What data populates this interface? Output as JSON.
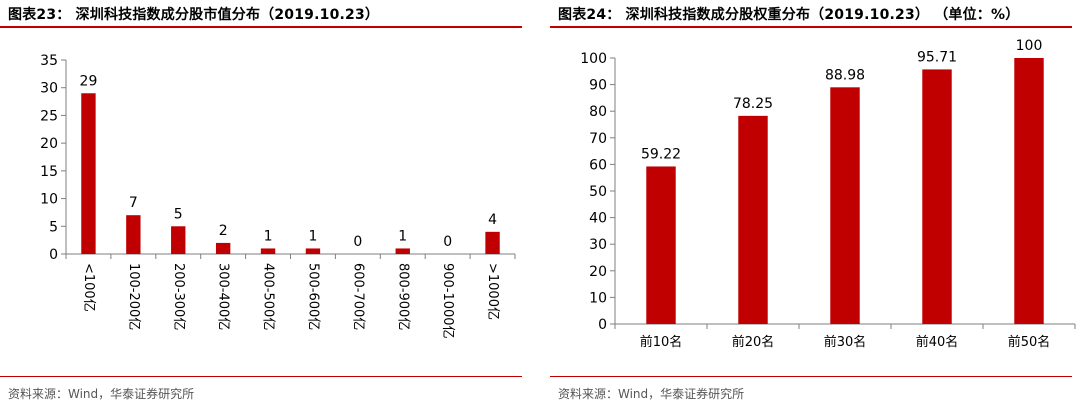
{
  "colors": {
    "accent": "#c00000",
    "bar": "#c00000",
    "axis": "#7f7f7f",
    "source_text": "#555555"
  },
  "left_chart": {
    "title": "图表23：  深圳科技指数成分股市值分布（2019.10.23）",
    "source": "资料来源：Wind，华泰证券研究所"
  },
  "right_chart": {
    "title": "图表24：  深圳科技指数成分股权重分布（2019.10.23）  （单位：%）",
    "source": "资料来源：Wind，华泰证券研究所"
  },
  "chart_data": [
    {
      "type": "bar",
      "title": "图表23：  深圳科技指数成分股市值分布（2019.10.23）",
      "categories": [
        "<100亿",
        "100-200亿",
        "200-300亿",
        "300-400亿",
        "400-500亿",
        "500-600亿",
        "600-700亿",
        "800-900亿",
        "900-1000亿",
        ">1000亿"
      ],
      "values": [
        29,
        7,
        5,
        2,
        1,
        1,
        0,
        1,
        0,
        4
      ],
      "ylim": [
        0,
        35
      ],
      "yticks": [
        0,
        5,
        10,
        15,
        20,
        25,
        30,
        35
      ],
      "xlabel": "",
      "ylabel": "",
      "grid": false,
      "data_labels": true,
      "x_tick_rotation": "vertical"
    },
    {
      "type": "bar",
      "title": "图表24：  深圳科技指数成分股权重分布（2019.10.23）  （单位：%）",
      "categories": [
        "前10名",
        "前20名",
        "前30名",
        "前40名",
        "前50名"
      ],
      "values": [
        59.22,
        78.25,
        88.98,
        95.71,
        100
      ],
      "ylim": [
        0,
        100
      ],
      "yticks": [
        0,
        10,
        20,
        30,
        40,
        50,
        60,
        70,
        80,
        90,
        100
      ],
      "xlabel": "",
      "ylabel": "",
      "grid": false,
      "data_labels": true,
      "x_tick_rotation": "horizontal"
    }
  ]
}
